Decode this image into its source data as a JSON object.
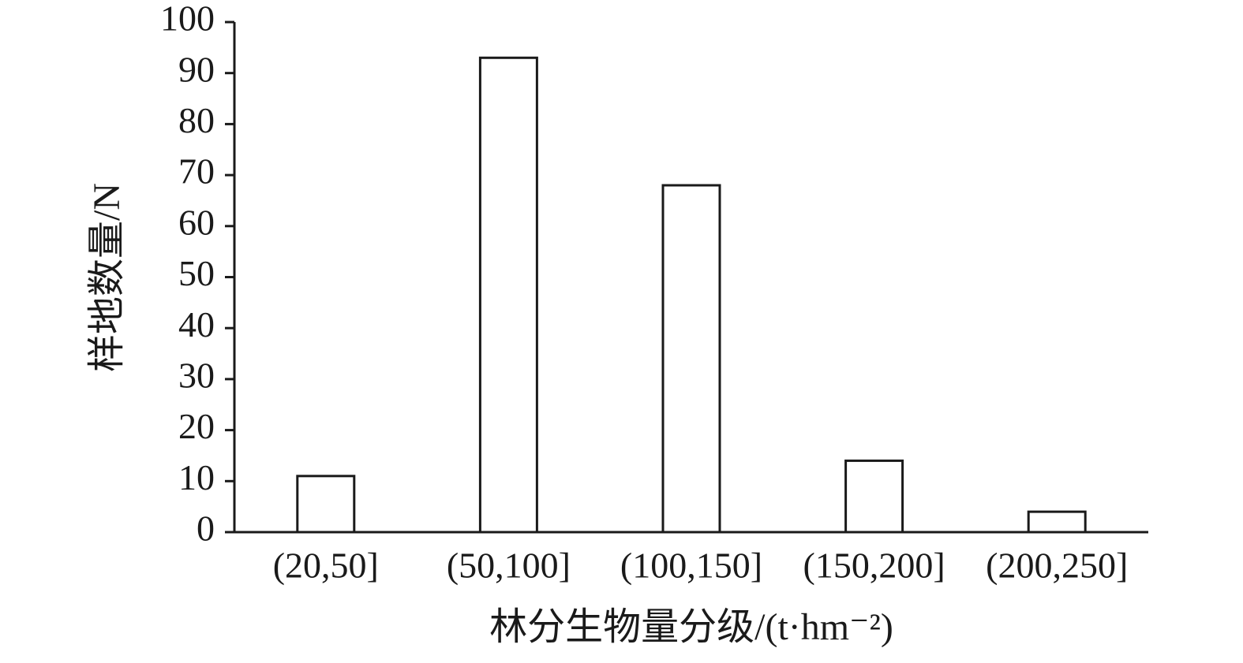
{
  "chart_data": {
    "type": "bar",
    "x_label": "林分生物量分级/(t·hm⁻²)",
    "y_label": "样地数量/N",
    "categories": [
      "(20,50]",
      "(50,100]",
      "(100,150]",
      "(150,200]",
      "(200,250]"
    ],
    "values": [
      11,
      93,
      68,
      14,
      4
    ],
    "color": "#ffffff",
    "ylim": [
      0,
      100
    ],
    "yticks": [
      0,
      10,
      20,
      30,
      40,
      50,
      60,
      70,
      80,
      90,
      100
    ],
    "grid": false
  }
}
